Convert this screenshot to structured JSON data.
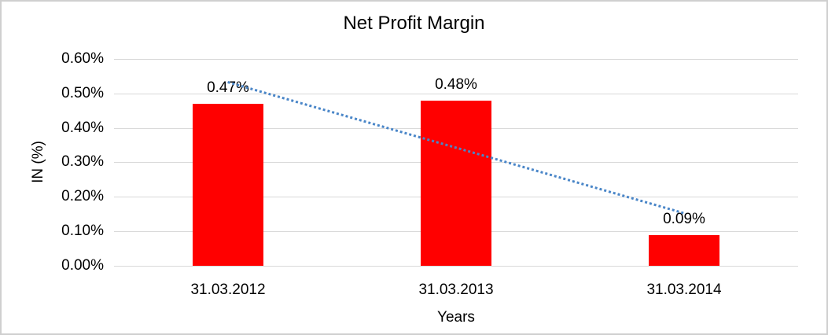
{
  "window": {
    "background": "#ffffff",
    "border_color": "#cfcfcf"
  },
  "chart_data": {
    "type": "bar",
    "title": "Net Profit Margin",
    "categories": [
      "31.03.2012",
      "31.03.2013",
      "31.03.2014"
    ],
    "values": [
      0.47,
      0.48,
      0.09
    ],
    "data_labels": [
      "0.47%",
      "0.48%",
      "0.09%"
    ],
    "xlabel": "Years",
    "ylabel": "IN (%)",
    "ylim": [
      0,
      0.6
    ],
    "ytick_labels": [
      "0.00%",
      "0.10%",
      "0.20%",
      "0.30%",
      "0.40%",
      "0.50%",
      "0.60%"
    ],
    "grid": "horizontal",
    "legend": "none",
    "bar_color": "#ff0000",
    "gridline_color": "#d9d9d9",
    "text_color": "#000000",
    "trendline": {
      "type": "linear",
      "style": "dotted",
      "color": "#4a86c8"
    }
  }
}
